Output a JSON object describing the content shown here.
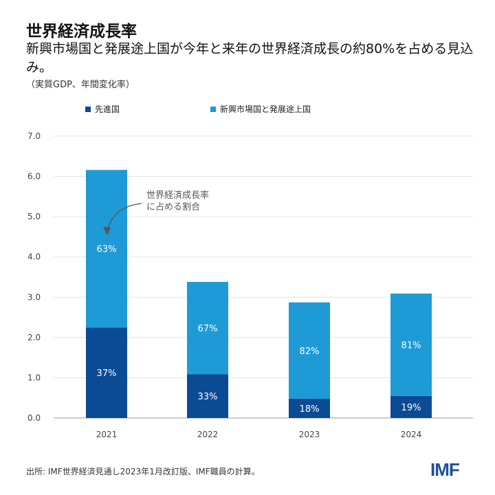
{
  "title": "世界経済成長率",
  "subtitle": "新興市場国と発展途上国が今年と来年の世界経済成長の約80%を占める見込み。",
  "unit_note": "（実質GDP、年間変化率）",
  "source": "出所: IMF世界経済見通し2023年1月改訂版、IMF職員の計算。",
  "logo": "IMF",
  "colors": {
    "advanced": "#0a4b94",
    "emerging": "#1e9ad6"
  },
  "chart_data": {
    "type": "bar",
    "stacked": true,
    "categories": [
      "2021",
      "2022",
      "2023",
      "2024"
    ],
    "series": [
      {
        "name": "先進国",
        "values": [
          2.25,
          1.09,
          0.48,
          0.55
        ],
        "labels": [
          "37%",
          "33%",
          "18%",
          "19%"
        ]
      },
      {
        "name": "新興市場国と発展途上国",
        "values": [
          3.91,
          2.29,
          2.39,
          2.54
        ],
        "labels": [
          "63%",
          "67%",
          "82%",
          "81%"
        ]
      }
    ],
    "ylim": [
      0,
      7
    ],
    "yticks": [
      "0.0",
      "1.0",
      "2.0",
      "3.0",
      "4.0",
      "5.0",
      "6.0",
      "7.0"
    ],
    "grid": true,
    "legend": "top",
    "annotation": [
      "世界経済成長率",
      "に占める割合"
    ]
  }
}
